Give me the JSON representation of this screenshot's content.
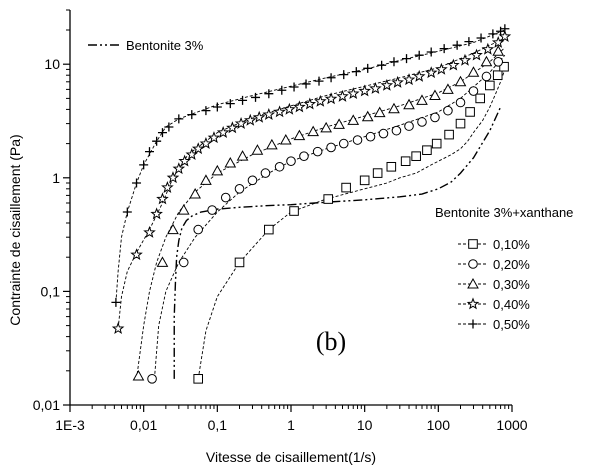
{
  "chart_data": {
    "type": "line",
    "xlabel": "Vitesse de cisaillement(1/s)",
    "ylabel": "Contrainte de cisaillement (Pa)",
    "xscale": "log",
    "yscale": "log",
    "xlim": [
      0.001,
      1000
    ],
    "ylim": [
      0.01,
      30
    ],
    "x_ticks": [
      0.001,
      0.01,
      0.1,
      1,
      10,
      100,
      1000
    ],
    "x_tick_labels": [
      "1E-3",
      "0,01",
      "0,1",
      "1",
      "10",
      "100",
      "1000"
    ],
    "y_ticks": [
      0.01,
      0.1,
      1,
      10
    ],
    "y_tick_labels": [
      "0,01",
      "0,1",
      "1",
      "10"
    ],
    "grid": false,
    "panel_label": "(b)",
    "legend_group_title": "Bentonite 3%+xanthane",
    "series": [
      {
        "name": "Bentonite 3%",
        "marker": "none",
        "dash": "9,3,2,3,2,3",
        "x": [
          0.026,
          0.026,
          0.027,
          0.028,
          0.03,
          0.033,
          0.038,
          0.045,
          0.06,
          0.1,
          0.2,
          0.5,
          1,
          3,
          10,
          30,
          60,
          100,
          150,
          200,
          300,
          500,
          700
        ],
        "y": [
          0.017,
          0.06,
          0.12,
          0.2,
          0.28,
          0.36,
          0.42,
          0.46,
          0.5,
          0.53,
          0.55,
          0.57,
          0.58,
          0.61,
          0.64,
          0.68,
          0.72,
          0.8,
          0.92,
          1.1,
          1.5,
          2.6,
          4.2
        ]
      },
      {
        "name": "0,10%",
        "marker": "square",
        "dash": "3,2",
        "x": [
          0.055,
          0.07,
          0.1,
          0.2,
          0.5,
          1,
          3,
          10,
          20,
          30,
          50,
          80,
          100,
          150,
          200,
          250,
          300,
          400,
          500,
          600,
          700,
          800
        ],
        "y": [
          0.017,
          0.045,
          0.09,
          0.18,
          0.35,
          0.5,
          0.65,
          0.8,
          0.9,
          1.0,
          1.1,
          1.3,
          1.4,
          1.6,
          1.8,
          2.1,
          2.5,
          3.2,
          4.2,
          5.5,
          7.0,
          9.0
        ],
        "marker_x": [
          0.055,
          0.2,
          0.5,
          1.1,
          3.2,
          5.6,
          10,
          15,
          23,
          36,
          50,
          70,
          95,
          140,
          200,
          270,
          370,
          500,
          640,
          780
        ],
        "marker_y": [
          0.017,
          0.18,
          0.35,
          0.51,
          0.65,
          0.82,
          0.95,
          1.1,
          1.25,
          1.4,
          1.55,
          1.75,
          2.0,
          2.4,
          3.0,
          3.8,
          5.0,
          6.5,
          8.0,
          9.5
        ]
      },
      {
        "name": "0,20%",
        "marker": "circle",
        "dash": "3,2",
        "x": [
          0.014,
          0.016,
          0.02,
          0.03,
          0.05,
          0.1,
          0.2,
          0.5,
          1,
          3,
          10,
          30,
          100,
          200,
          300,
          500,
          800
        ],
        "y": [
          0.017,
          0.05,
          0.1,
          0.18,
          0.3,
          0.5,
          0.75,
          1.1,
          1.4,
          1.8,
          2.3,
          2.9,
          3.8,
          5.0,
          6.3,
          8.5,
          12
        ],
        "marker_x": [
          0.013,
          0.035,
          0.055,
          0.085,
          0.13,
          0.2,
          0.3,
          0.45,
          0.7,
          1.0,
          1.5,
          2.3,
          3.5,
          5.2,
          8,
          12,
          18,
          27,
          40,
          60,
          90,
          135,
          200,
          300,
          450,
          650
        ],
        "marker_y": [
          0.017,
          0.18,
          0.35,
          0.52,
          0.67,
          0.8,
          0.95,
          1.1,
          1.25,
          1.4,
          1.55,
          1.7,
          1.85,
          2.0,
          2.15,
          2.3,
          2.45,
          2.6,
          2.85,
          3.1,
          3.4,
          3.9,
          4.6,
          5.8,
          7.8,
          10.5
        ]
      },
      {
        "name": "0,30%",
        "marker": "triangle",
        "dash": "3,2",
        "x": [
          0.008,
          0.01,
          0.012,
          0.015,
          0.02,
          0.03,
          0.05,
          0.1,
          0.3,
          1,
          3,
          10,
          30,
          100,
          200,
          500,
          800
        ],
        "y": [
          0.017,
          0.05,
          0.1,
          0.18,
          0.3,
          0.5,
          0.75,
          1.1,
          1.6,
          2.2,
          2.8,
          3.5,
          4.3,
          5.6,
          7.0,
          10.5,
          14
        ],
        "marker_x": [
          0.0085,
          0.018,
          0.025,
          0.035,
          0.05,
          0.07,
          0.1,
          0.15,
          0.22,
          0.35,
          0.55,
          0.85,
          1.3,
          2,
          3,
          4.5,
          7,
          11,
          16,
          25,
          40,
          60,
          90,
          135,
          200,
          300,
          450,
          650
        ],
        "marker_y": [
          0.018,
          0.18,
          0.35,
          0.52,
          0.72,
          0.95,
          1.15,
          1.35,
          1.55,
          1.75,
          1.95,
          2.15,
          2.35,
          2.55,
          2.75,
          2.95,
          3.2,
          3.45,
          3.75,
          4.05,
          4.4,
          4.8,
          5.3,
          6.0,
          7.0,
          8.5,
          10.5,
          13
        ]
      },
      {
        "name": "0,40%",
        "marker": "star",
        "dash": "3,2",
        "x": [
          0.0045,
          0.005,
          0.006,
          0.008,
          0.012,
          0.018,
          0.025,
          0.04,
          0.1,
          0.3,
          1,
          3,
          10,
          30,
          100,
          300,
          800
        ],
        "y": [
          0.047,
          0.09,
          0.15,
          0.22,
          0.35,
          0.6,
          1.0,
          1.6,
          2.5,
          3.4,
          4.3,
          5.3,
          6.4,
          7.6,
          9.3,
          12.5,
          17
        ],
        "marker_x": [
          0.0045,
          0.008,
          0.012,
          0.015,
          0.018,
          0.021,
          0.025,
          0.03,
          0.036,
          0.045,
          0.055,
          0.07,
          0.09,
          0.12,
          0.16,
          0.21,
          0.28,
          0.37,
          0.5,
          0.7,
          0.95,
          1.3,
          1.8,
          2.5,
          3.5,
          5,
          7,
          10,
          14,
          20,
          28,
          40,
          55,
          80,
          110,
          160,
          230,
          330,
          470,
          650,
          800
        ],
        "marker_y": [
          0.047,
          0.21,
          0.33,
          0.48,
          0.65,
          0.82,
          1.0,
          1.2,
          1.4,
          1.6,
          1.8,
          2.0,
          2.25,
          2.5,
          2.75,
          3.0,
          3.2,
          3.4,
          3.6,
          3.8,
          4.0,
          4.2,
          4.45,
          4.7,
          4.95,
          5.2,
          5.5,
          5.8,
          6.1,
          6.5,
          6.9,
          7.3,
          7.8,
          8.4,
          9.0,
          9.8,
          10.8,
          12,
          13.5,
          15.5,
          17.5
        ]
      },
      {
        "name": "0,50%",
        "marker": "plus",
        "dash": "3,2",
        "x": [
          0.0042,
          0.0045,
          0.005,
          0.006,
          0.008,
          0.01,
          0.015,
          0.02,
          0.03,
          0.1,
          0.3,
          1,
          3,
          10,
          30,
          100,
          300,
          800
        ],
        "y": [
          0.08,
          0.15,
          0.3,
          0.5,
          0.9,
          1.3,
          2.1,
          2.8,
          3.3,
          4.4,
          5.3,
          6.4,
          7.6,
          9.0,
          10.8,
          13,
          15.5,
          20
        ],
        "marker_x": [
          0.0042,
          0.006,
          0.008,
          0.01,
          0.012,
          0.015,
          0.018,
          0.022,
          0.03,
          0.045,
          0.07,
          0.1,
          0.15,
          0.22,
          0.33,
          0.5,
          0.75,
          1.1,
          1.6,
          2.4,
          3.5,
          5.2,
          7.7,
          11,
          17,
          25,
          37,
          55,
          80,
          120,
          180,
          260,
          380,
          550,
          700,
          800
        ],
        "marker_y": [
          0.08,
          0.5,
          0.9,
          1.3,
          1.7,
          2.1,
          2.5,
          2.8,
          3.3,
          3.6,
          3.9,
          4.2,
          4.5,
          4.8,
          5.1,
          5.5,
          5.9,
          6.3,
          6.7,
          7.1,
          7.6,
          8.1,
          8.6,
          9.2,
          9.8,
          10.5,
          11.2,
          12,
          12.8,
          13.7,
          14.7,
          15.8,
          17,
          18.5,
          19.5,
          20.5
        ]
      }
    ]
  }
}
